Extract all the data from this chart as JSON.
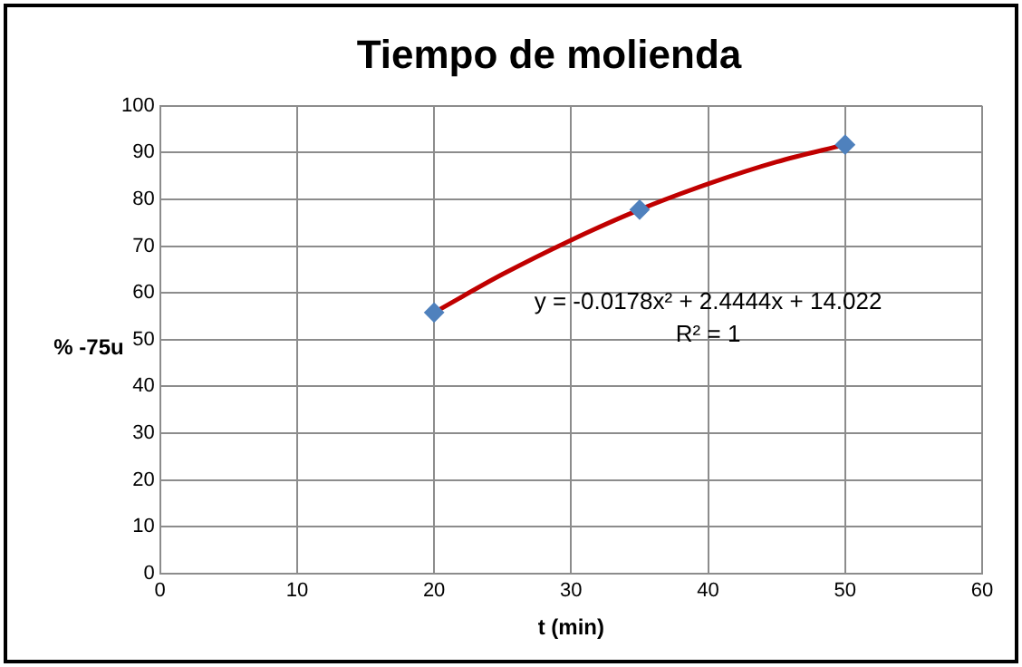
{
  "chart_data": {
    "type": "scatter",
    "title": "Tiempo de molienda",
    "xlabel": "t (min)",
    "ylabel": "% -75u",
    "series": [
      {
        "color": "#4f81bd",
        "marker": "diamond",
        "x": [
          20,
          35,
          50
        ],
        "values": [
          55.8,
          77.8,
          91.7
        ]
      },
      {
        "type": "line",
        "color": "#c00000",
        "marker": "none",
        "line_style": "solid",
        "x": [
          20,
          25,
          30,
          35,
          40,
          45,
          50
        ],
        "values": [
          55.8,
          64.0,
          71.3,
          77.8,
          83.3,
          88.0,
          91.7
        ]
      }
    ],
    "xlim": [
      0,
      60
    ],
    "xticks": [
      0,
      10,
      20,
      30,
      40,
      50,
      60
    ],
    "ylim": [
      0,
      100
    ],
    "yticks": [
      0,
      10,
      20,
      30,
      40,
      50,
      60,
      70,
      80,
      90,
      100
    ],
    "grid": true,
    "annotations": [
      "y = -0.0178x² + 2.4444x + 14.022",
      "R² = 1"
    ]
  }
}
